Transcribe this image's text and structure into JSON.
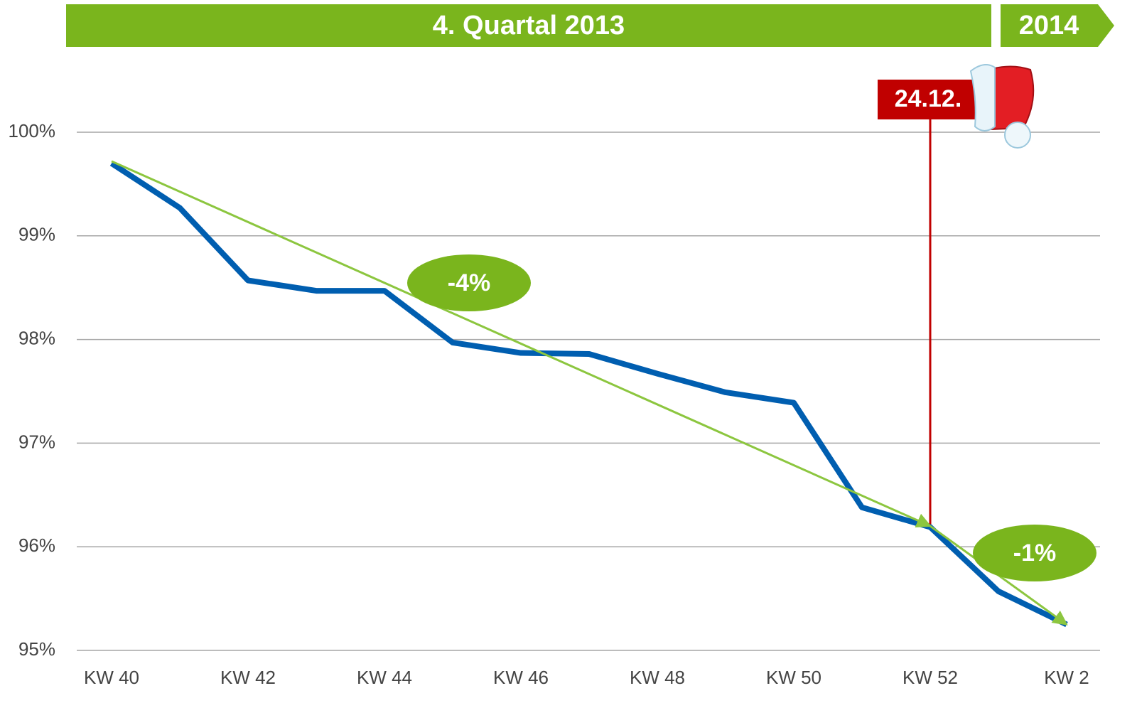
{
  "chart_data": {
    "type": "line",
    "header": {
      "period": "4. Quartal 2013",
      "next_period": "2014"
    },
    "categories": [
      "KW 40",
      null,
      "KW 42",
      null,
      "KW 44",
      null,
      "KW 46",
      null,
      "KW 48",
      null,
      "KW 50",
      null,
      "KW 52",
      null,
      "KW 2"
    ],
    "series": [
      {
        "color": "#005eb0",
        "values": [
          99.7,
          99.27,
          98.57,
          98.47,
          98.47,
          97.97,
          97.87,
          97.86,
          97.67,
          97.49,
          97.39,
          96.38,
          96.19,
          95.57,
          95.25
        ]
      }
    ],
    "ylim": [
      95,
      100
    ],
    "yticks": [
      {
        "value": 95,
        "label": "95%"
      },
      {
        "value": 96,
        "label": "96%"
      },
      {
        "value": 97,
        "label": "97%"
      },
      {
        "value": 98,
        "label": "98%"
      },
      {
        "value": 99,
        "label": "99%"
      },
      {
        "value": 100,
        "label": "100%"
      }
    ],
    "grid": true,
    "trends": [
      {
        "from": 0,
        "to": 12,
        "start_value": 99.72,
        "end_value": 96.2,
        "label": "-4%",
        "color": "#8cc63f"
      },
      {
        "from": 12,
        "to": 14,
        "start_value": 96.2,
        "end_value": 95.25,
        "label": "-1%",
        "color": "#8cc63f"
      }
    ],
    "event": {
      "index": 12,
      "label": "24.12.",
      "color": "#c00000"
    }
  }
}
